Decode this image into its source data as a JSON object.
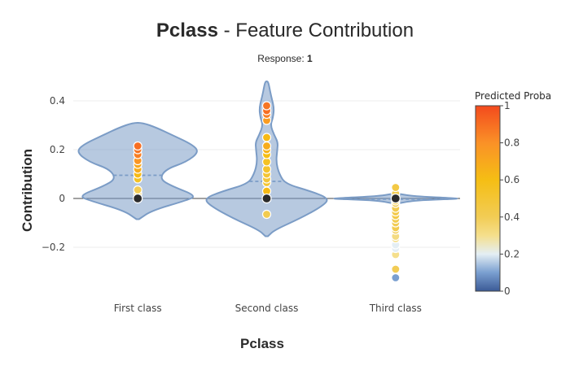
{
  "chart_data": {
    "type": "violin",
    "title": {
      "feature": "Pclass",
      "rest": " - Feature Contribution"
    },
    "subtitle": {
      "prefix": "Response: ",
      "value": "1"
    },
    "xlabel": "Pclass",
    "ylabel": "Contribution",
    "ylim": [
      -0.37,
      0.48
    ],
    "yticks": [
      -0.2,
      0,
      0.2,
      0.4
    ],
    "ytick_labels": [
      "−0.2",
      "0",
      "0.2",
      "0.4"
    ],
    "grid": true,
    "violin_color": "#7b9cc6",
    "violin_fill": "rgba(123,156,198,0.55)",
    "categories": [
      {
        "name": "First class",
        "mean": 0.095,
        "shape": [
          [
            -0.085,
            0.02
          ],
          [
            -0.05,
            0.22
          ],
          [
            -0.01,
            0.75
          ],
          [
            0.01,
            0.95
          ],
          [
            0.05,
            0.55
          ],
          [
            0.08,
            0.35
          ],
          [
            0.12,
            0.45
          ],
          [
            0.15,
            0.78
          ],
          [
            0.19,
            0.98
          ],
          [
            0.22,
            0.88
          ],
          [
            0.26,
            0.55
          ],
          [
            0.29,
            0.3
          ],
          [
            0.31,
            0.08
          ]
        ],
        "points": [
          [
            0.0,
            0.35
          ],
          [
            0.0,
            0.36
          ],
          [
            0.02,
            0.38
          ],
          [
            0.035,
            0.4
          ],
          [
            0.08,
            0.55
          ],
          [
            0.1,
            0.62
          ],
          [
            0.12,
            0.68
          ],
          [
            0.14,
            0.7
          ],
          [
            0.155,
            0.78
          ],
          [
            0.18,
            0.85
          ],
          [
            0.2,
            0.88
          ],
          [
            0.215,
            0.9
          ]
        ]
      },
      {
        "name": "Second class",
        "mean": 0.07,
        "shape": [
          [
            -0.155,
            0.02
          ],
          [
            -0.13,
            0.12
          ],
          [
            -0.08,
            0.55
          ],
          [
            -0.03,
            0.9
          ],
          [
            0.0,
            1.0
          ],
          [
            0.03,
            0.7
          ],
          [
            0.06,
            0.3
          ],
          [
            0.1,
            0.2
          ],
          [
            0.15,
            0.15
          ],
          [
            0.2,
            0.17
          ],
          [
            0.23,
            0.18
          ],
          [
            0.26,
            0.12
          ],
          [
            0.3,
            0.06
          ],
          [
            0.33,
            0.1
          ],
          [
            0.37,
            0.12
          ],
          [
            0.42,
            0.07
          ],
          [
            0.46,
            0.04
          ],
          [
            0.48,
            0.02
          ]
        ],
        "points": [
          [
            -0.065,
            0.42
          ],
          [
            0.0,
            0.5
          ],
          [
            0.03,
            0.62
          ],
          [
            0.065,
            0.5
          ],
          [
            0.08,
            0.48
          ],
          [
            0.1,
            0.5
          ],
          [
            0.12,
            0.52
          ],
          [
            0.15,
            0.55
          ],
          [
            0.18,
            0.6
          ],
          [
            0.2,
            0.65
          ],
          [
            0.215,
            0.68
          ],
          [
            0.25,
            0.62
          ],
          [
            0.32,
            0.75
          ],
          [
            0.345,
            0.85
          ],
          [
            0.36,
            0.9
          ],
          [
            0.38,
            0.88
          ]
        ]
      },
      {
        "name": "Third class",
        "mean": -0.003,
        "shape": [
          [
            -0.02,
            0.05
          ],
          [
            -0.008,
            0.3
          ],
          [
            -0.002,
            0.95
          ],
          [
            0.0,
            1.0
          ],
          [
            0.003,
            0.8
          ],
          [
            0.01,
            0.25
          ],
          [
            0.02,
            0.04
          ]
        ],
        "points": [
          [
            -0.325,
            0.1
          ],
          [
            -0.29,
            0.4
          ],
          [
            -0.23,
            0.3
          ],
          [
            -0.205,
            0.2
          ],
          [
            -0.19,
            0.2
          ],
          [
            -0.165,
            0.3
          ],
          [
            -0.155,
            0.32
          ],
          [
            -0.13,
            0.38
          ],
          [
            -0.12,
            0.42
          ],
          [
            -0.1,
            0.4
          ],
          [
            -0.085,
            0.42
          ],
          [
            -0.07,
            0.45
          ],
          [
            -0.055,
            0.44
          ],
          [
            -0.04,
            0.42
          ],
          [
            -0.02,
            0.4
          ],
          [
            -0.01,
            0.38
          ],
          [
            0.0,
            0.42
          ],
          [
            0.02,
            0.42
          ],
          [
            0.045,
            0.45
          ]
        ]
      }
    ],
    "colorbar": {
      "title": "Predicted Proba",
      "range": [
        0,
        1
      ],
      "ticks": [
        0,
        0.2,
        0.4,
        0.6,
        0.8,
        1
      ],
      "tick_labels": [
        "0",
        "0.2",
        "0.4",
        "0.6",
        "0.8",
        "1"
      ],
      "colorscale": [
        [
          0,
          "#3b5a96"
        ],
        [
          0.1,
          "#7a9fd0"
        ],
        [
          0.2,
          "#e4eef4"
        ],
        [
          0.3,
          "#f5df8c"
        ],
        [
          0.4,
          "#f2cc55"
        ],
        [
          0.6,
          "#f5be14"
        ],
        [
          0.8,
          "#fa9127"
        ],
        [
          1,
          "#f34a1d"
        ]
      ]
    }
  }
}
